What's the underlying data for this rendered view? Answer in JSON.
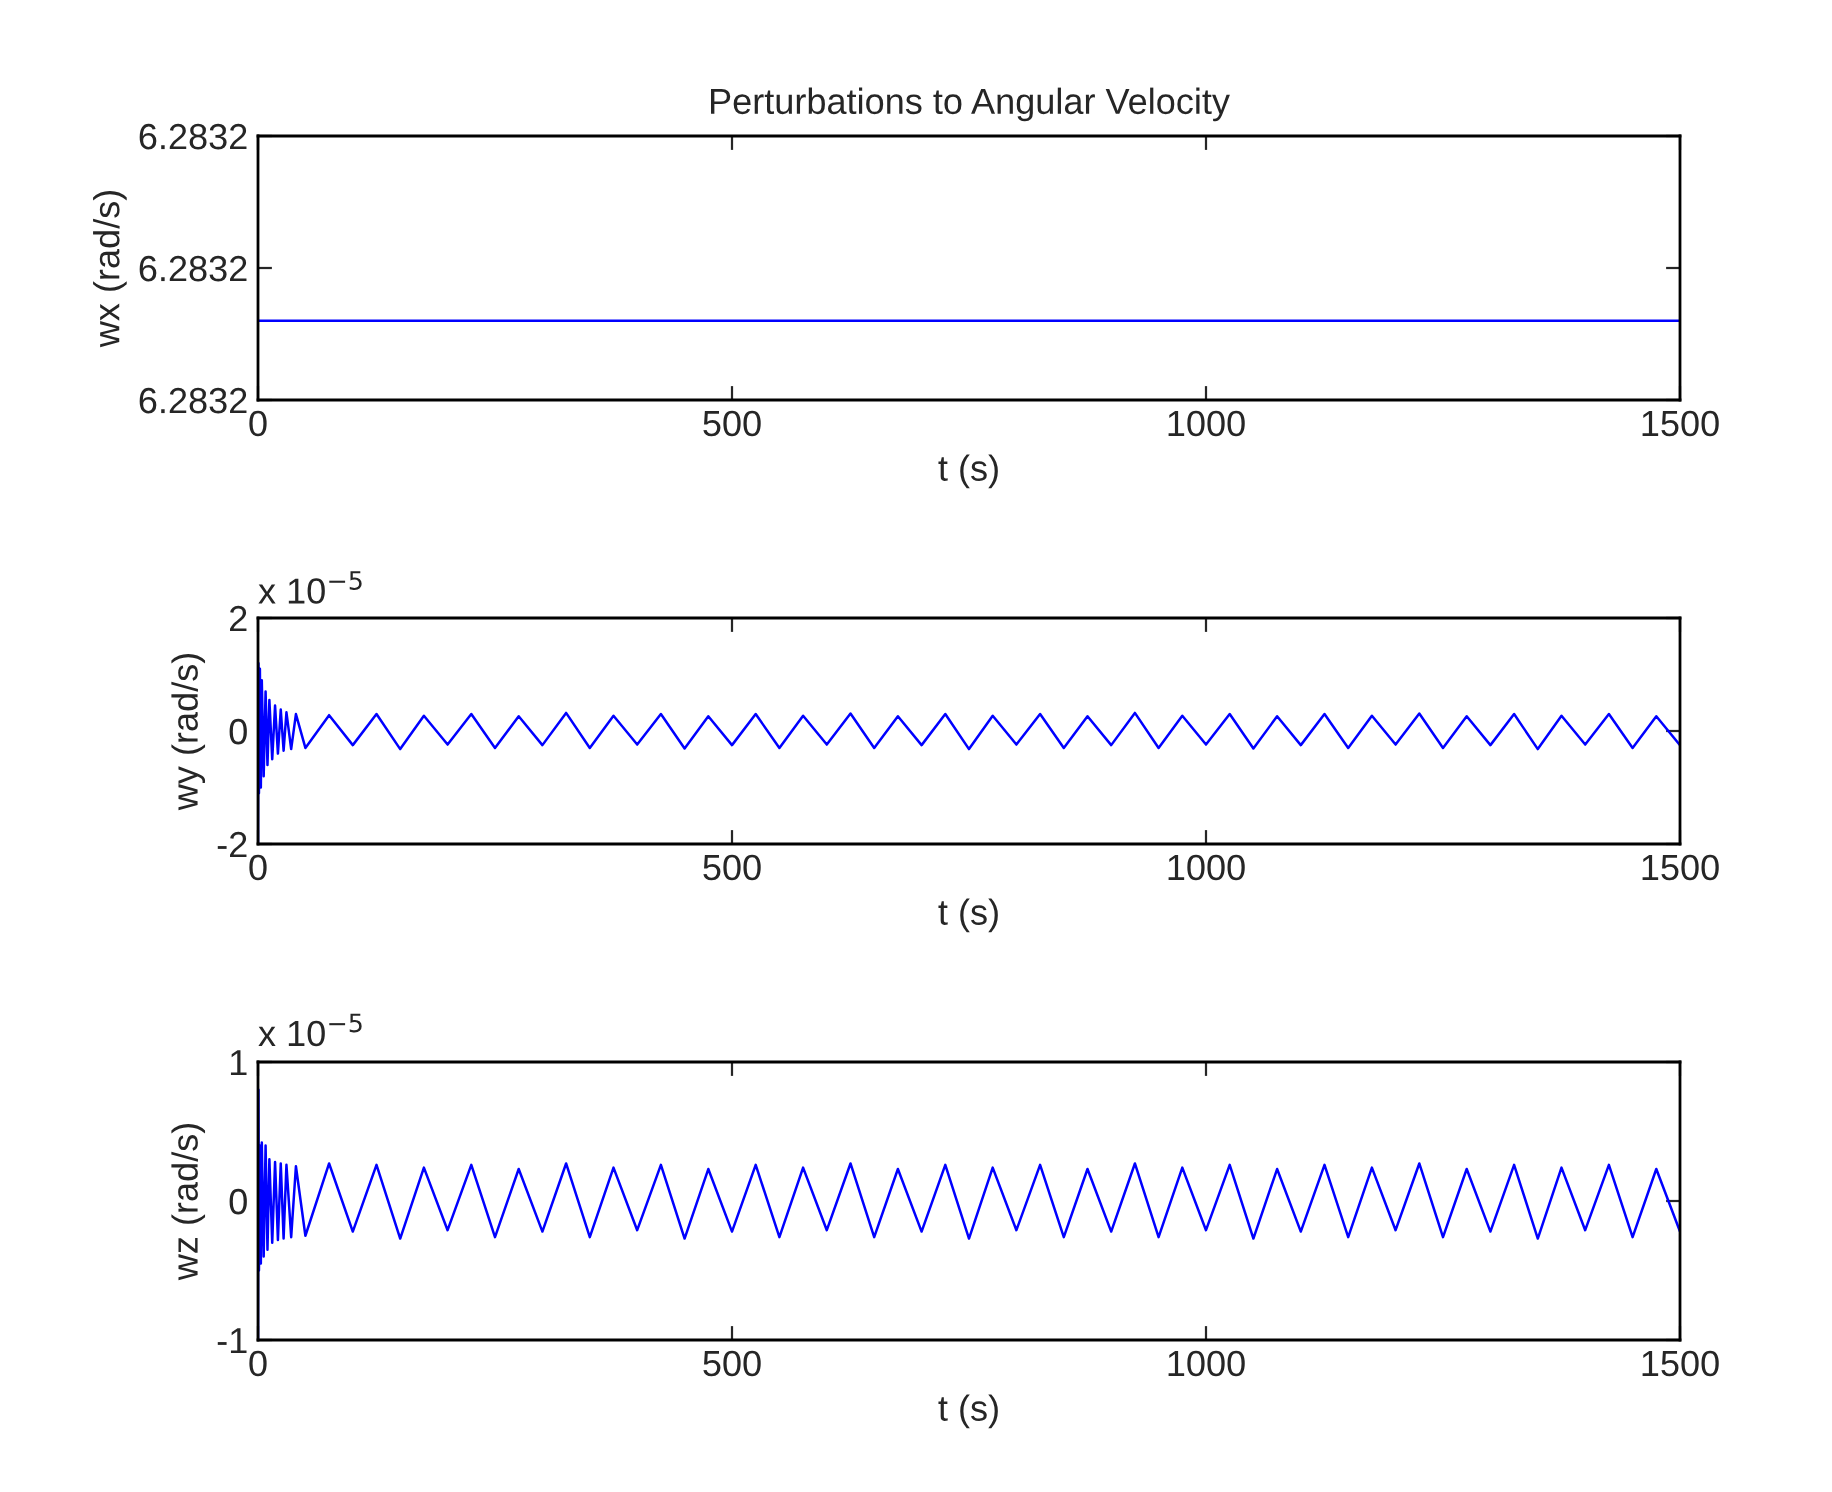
{
  "chart_data": [
    {
      "type": "line",
      "title": "Perturbations to Angular Velocity",
      "xlabel": "t (s)",
      "ylabel": "wx (rad/s)",
      "xlim": [
        0,
        1500
      ],
      "xticks": [
        0,
        500,
        1000,
        1500
      ],
      "ylim": [
        6.28318,
        6.28322
      ],
      "yticks": [
        {
          "value": 6.28318,
          "label": "6.2832"
        },
        {
          "value": 6.2832,
          "label": "6.2832"
        },
        {
          "value": 6.28322,
          "label": "6.2832"
        }
      ],
      "grid": false,
      "series": [
        {
          "color": "#0000ff",
          "x": [
            0,
            1500
          ],
          "values": [
            6.283192,
            6.283192
          ]
        }
      ]
    },
    {
      "type": "line",
      "xlabel": "t (s)",
      "ylabel": "wy (rad/s)",
      "annotations": [
        "x 10$^{−5}$"
      ],
      "xlim": [
        0,
        1500
      ],
      "xticks": [
        0,
        500,
        1000,
        1500
      ],
      "ylim": [
        -2,
        2
      ],
      "yticks": [
        -2,
        0,
        2
      ],
      "grid": false,
      "series": [
        {
          "color": "#0000ff",
          "x": [
            0,
            0.5,
            1,
            2,
            3,
            4,
            6,
            8,
            10,
            12,
            15,
            18,
            21,
            24,
            27,
            30,
            35,
            40,
            50,
            75,
            100,
            125,
            150,
            175,
            200,
            225,
            250,
            275,
            300,
            325,
            350,
            375,
            400,
            425,
            450,
            475,
            500,
            525,
            550,
            575,
            600,
            625,
            650,
            675,
            700,
            725,
            750,
            775,
            800,
            825,
            850,
            875,
            900,
            925,
            950,
            975,
            1000,
            1025,
            1050,
            1075,
            1100,
            1125,
            1150,
            1175,
            1200,
            1225,
            1250,
            1275,
            1300,
            1325,
            1350,
            1375,
            1400,
            1425,
            1450,
            1475,
            1500
          ],
          "values": [
            -2,
            1.2,
            -1.1,
            1.1,
            -1.0,
            0.9,
            -0.8,
            0.7,
            -0.6,
            0.55,
            -0.5,
            0.45,
            -0.4,
            0.38,
            -0.35,
            0.33,
            -0.32,
            0.3,
            -0.3,
            0.28,
            -0.25,
            0.3,
            -0.32,
            0.27,
            -0.24,
            0.3,
            -0.3,
            0.26,
            -0.25,
            0.32,
            -0.3,
            0.27,
            -0.24,
            0.3,
            -0.31,
            0.26,
            -0.25,
            0.3,
            -0.3,
            0.27,
            -0.24,
            0.31,
            -0.3,
            0.26,
            -0.25,
            0.3,
            -0.32,
            0.27,
            -0.24,
            0.3,
            -0.3,
            0.26,
            -0.25,
            0.32,
            -0.3,
            0.27,
            -0.24,
            0.3,
            -0.31,
            0.26,
            -0.25,
            0.3,
            -0.3,
            0.27,
            -0.24,
            0.31,
            -0.3,
            0.26,
            -0.25,
            0.3,
            -0.32,
            0.27,
            -0.24,
            0.3,
            -0.3,
            0.26,
            -0.25
          ]
        }
      ]
    },
    {
      "type": "line",
      "xlabel": "t (s)",
      "ylabel": "wz (rad/s)",
      "annotations": [
        "x 10$^{−5}$"
      ],
      "xlim": [
        0,
        1500
      ],
      "xticks": [
        0,
        500,
        1000,
        1500
      ],
      "ylim": [
        -1,
        1
      ],
      "yticks": [
        -1,
        0,
        1
      ],
      "grid": false,
      "series": [
        {
          "color": "#0000ff",
          "x": [
            0,
            0.5,
            1,
            2,
            3,
            4,
            6,
            8,
            10,
            12,
            15,
            18,
            21,
            24,
            27,
            30,
            35,
            40,
            50,
            75,
            100,
            125,
            150,
            175,
            200,
            225,
            250,
            275,
            300,
            325,
            350,
            375,
            400,
            425,
            450,
            475,
            500,
            525,
            550,
            575,
            600,
            625,
            650,
            675,
            700,
            725,
            750,
            775,
            800,
            825,
            850,
            875,
            900,
            925,
            950,
            975,
            1000,
            1025,
            1050,
            1075,
            1100,
            1125,
            1150,
            1175,
            1200,
            1225,
            1250,
            1275,
            1300,
            1325,
            1350,
            1375,
            1400,
            1425,
            1450,
            1475,
            1500
          ],
          "values": [
            -1,
            0.8,
            -0.5,
            0.4,
            -0.45,
            0.42,
            -0.4,
            0.4,
            -0.35,
            0.3,
            -0.3,
            0.28,
            -0.28,
            0.27,
            -0.27,
            0.26,
            -0.26,
            0.25,
            -0.25,
            0.27,
            -0.22,
            0.26,
            -0.27,
            0.24,
            -0.21,
            0.26,
            -0.26,
            0.23,
            -0.22,
            0.27,
            -0.26,
            0.24,
            -0.21,
            0.26,
            -0.27,
            0.23,
            -0.22,
            0.26,
            -0.26,
            0.24,
            -0.21,
            0.27,
            -0.26,
            0.23,
            -0.22,
            0.26,
            -0.27,
            0.24,
            -0.21,
            0.26,
            -0.26,
            0.23,
            -0.22,
            0.27,
            -0.26,
            0.24,
            -0.21,
            0.26,
            -0.27,
            0.23,
            -0.22,
            0.26,
            -0.26,
            0.24,
            -0.21,
            0.27,
            -0.26,
            0.23,
            -0.22,
            0.26,
            -0.27,
            0.24,
            -0.21,
            0.26,
            -0.26,
            0.23,
            -0.22
          ]
        }
      ]
    }
  ]
}
